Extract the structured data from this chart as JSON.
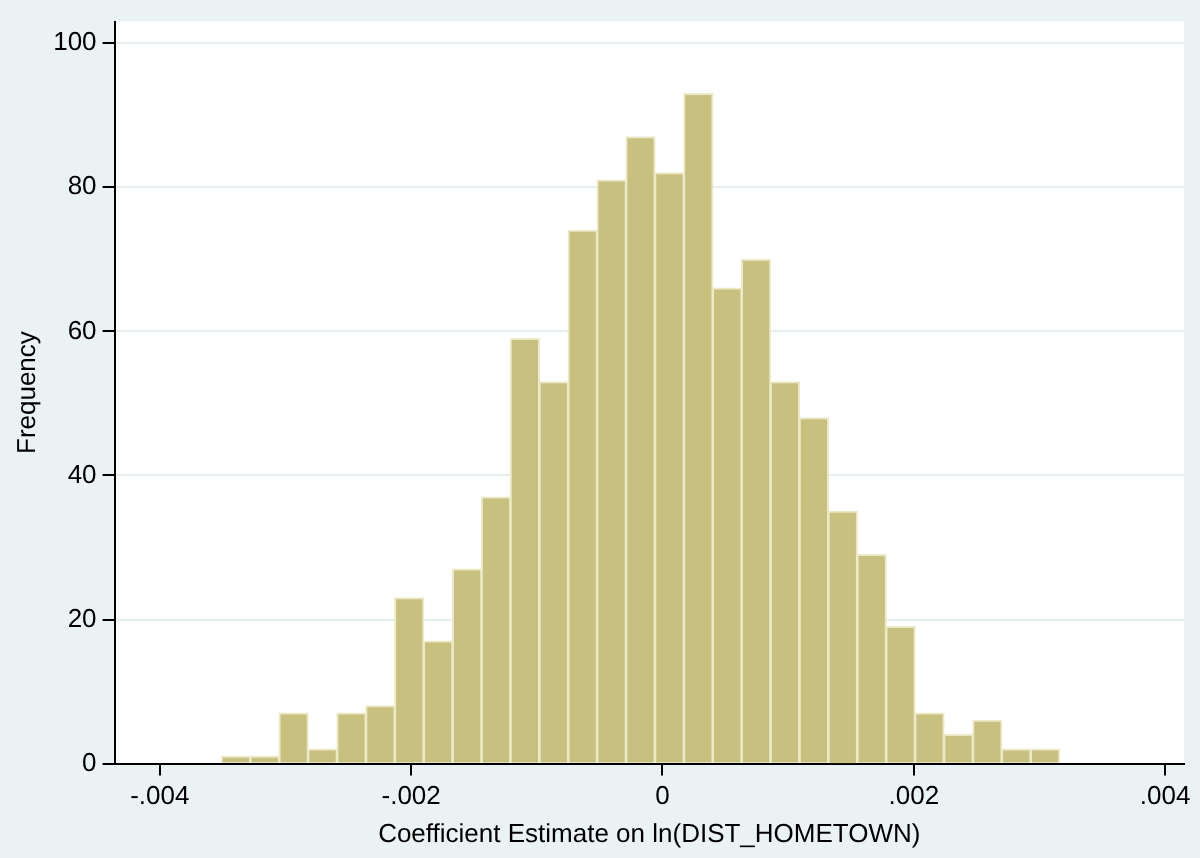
{
  "chart_data": {
    "type": "histogram",
    "xlabel": "Coefficient Estimate on ln(DIST_HOMETOWN)",
    "ylabel": "Frequency",
    "bins": [
      -0.00351,
      -0.00328,
      -0.00305,
      -0.00282,
      -0.00259,
      -0.00236,
      -0.00213,
      -0.0019,
      -0.00167,
      -0.00144,
      -0.00121,
      -0.00098,
      -0.00075,
      -0.00052,
      -0.00029,
      -6e-05,
      0.00017,
      0.0004,
      0.00063,
      0.00086,
      0.00109,
      0.00132,
      0.00155,
      0.00178,
      0.00201,
      0.00224,
      0.00247,
      0.0027,
      0.00293,
      0.00316
    ],
    "values": [
      1,
      1,
      7,
      2,
      7,
      8,
      23,
      17,
      27,
      37,
      59,
      53,
      74,
      81,
      87,
      82,
      93,
      66,
      70,
      53,
      48,
      35,
      29,
      19,
      7,
      4,
      6,
      2,
      2
    ],
    "color": "#c8c07e",
    "xlim": [
      -0.00436,
      0.00415
    ],
    "xticks": [
      {
        "value": -0.004,
        "label": "-.004"
      },
      {
        "value": -0.002,
        "label": "-.002"
      },
      0,
      {
        "value": 0.002,
        "label": ".002"
      },
      {
        "value": 0.004,
        "label": ".004"
      }
    ],
    "ylim": [
      0,
      103
    ],
    "yticks": [
      0,
      20,
      40,
      60,
      80,
      100
    ],
    "grid": "y"
  }
}
